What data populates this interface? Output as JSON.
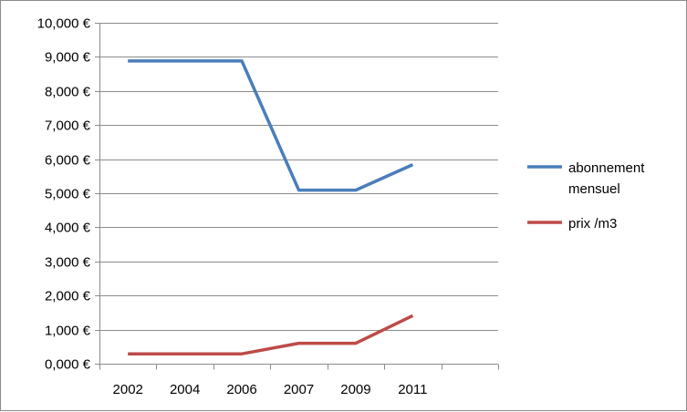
{
  "chart_data": {
    "type": "line",
    "categories": [
      "2002",
      "2004",
      "2006",
      "2007",
      "2009",
      "2011"
    ],
    "series": [
      {
        "name": "abonnement mensuel",
        "name_lines": [
          "abonnement",
          "mensuel"
        ],
        "color": "#4a7ebb",
        "values": [
          8.88,
          8.88,
          8.88,
          5.09,
          5.09,
          5.84
        ]
      },
      {
        "name": "prix /m3",
        "name_lines": [
          "prix /m3"
        ],
        "color": "#be4b48",
        "values": [
          0.29,
          0.29,
          0.29,
          0.6,
          0.6,
          1.41
        ]
      }
    ],
    "ylim": [
      0,
      10
    ],
    "yticks": [
      0,
      1,
      2,
      3,
      4,
      5,
      6,
      7,
      8,
      9,
      10
    ],
    "ytick_labels": [
      "0,000 €",
      "1,000 €",
      "2,000 €",
      "3,000 €",
      "4,000 €",
      "5,000 €",
      "6,000 €",
      "7,000 €",
      "8,000 €",
      "9,000 €",
      "10,000 €"
    ],
    "x_slots": 7,
    "grid": true,
    "legend_position": "right",
    "title": "",
    "xlabel": "",
    "ylabel": ""
  }
}
